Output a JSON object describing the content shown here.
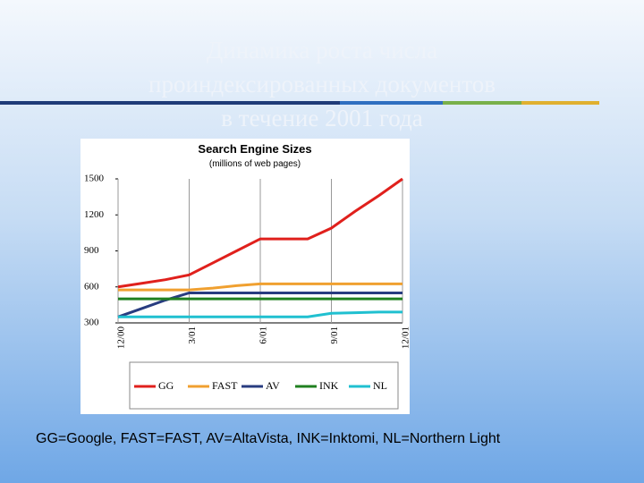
{
  "slide": {
    "title_lines": [
      "Динамика роста числа",
      "проиндексированных документов",
      "в течение 2001 года"
    ],
    "footnote": "GG=Google, FAST=FAST, AV=AltaVista, INK=Inktomi, NL=Northern Light"
  },
  "chart_data": {
    "type": "line",
    "title": "Search Engine Sizes",
    "subtitle": "(millions of web pages)",
    "categories": [
      "12/00",
      null,
      null,
      "3/01",
      null,
      null,
      "6/01",
      null,
      null,
      "9/01",
      null,
      null,
      "12/01"
    ],
    "ylim": [
      300,
      1500
    ],
    "yticks": [
      300,
      600,
      900,
      1200,
      1500
    ],
    "grid": true,
    "legend": "bottom",
    "series": [
      {
        "name": "GG",
        "color": "#e0201c",
        "values": [
          600,
          630,
          660,
          700,
          800,
          900,
          1000,
          1000,
          1000,
          1090,
          1230,
          1360,
          1500
        ]
      },
      {
        "name": "FAST",
        "color": "#f0a030",
        "values": [
          575,
          575,
          575,
          575,
          590,
          610,
          625,
          625,
          625,
          625,
          625,
          625,
          625
        ]
      },
      {
        "name": "AV",
        "color": "#283c80",
        "values": [
          350,
          420,
          490,
          550,
          550,
          550,
          550,
          550,
          550,
          550,
          550,
          550,
          550
        ]
      },
      {
        "name": "INK",
        "color": "#208020",
        "values": [
          500,
          500,
          500,
          500,
          500,
          500,
          500,
          500,
          500,
          500,
          500,
          500,
          500
        ]
      },
      {
        "name": "NL",
        "color": "#20c0d0",
        "values": [
          350,
          350,
          350,
          350,
          350,
          350,
          350,
          350,
          350,
          380,
          385,
          390,
          390
        ]
      }
    ]
  }
}
